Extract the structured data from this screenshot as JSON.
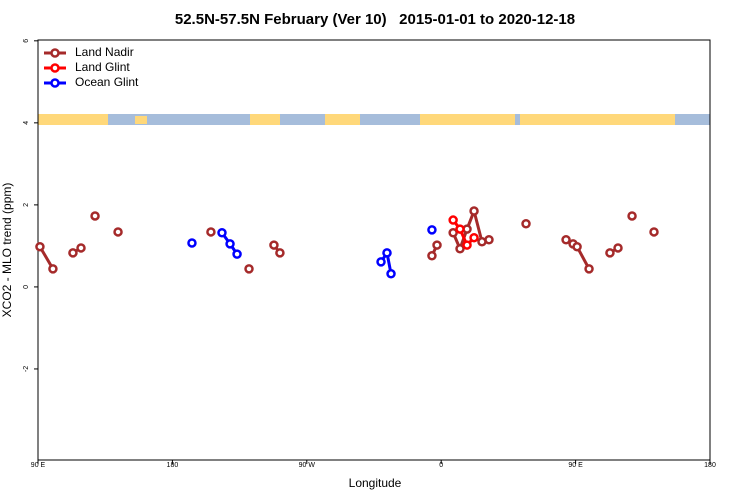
{
  "chart_data": {
    "type": "line",
    "title": "52.5N-57.5N February (Ver 10)   2015-01-01 to 2020-12-18",
    "x_label": "Longitude",
    "y_label": "XCO2 - MLO trend (ppm)",
    "xlim": [
      90,
      540
    ],
    "xticks": [
      {
        "value": 90,
        "label": "90 E"
      },
      {
        "value": 180,
        "label": "180"
      },
      {
        "value": 270,
        "label": "90 W"
      },
      {
        "value": 360,
        "label": "0"
      },
      {
        "value": 450,
        "label": "90 E"
      },
      {
        "value": 540,
        "label": "180"
      }
    ],
    "ylim": [
      -4.22,
      6.02
    ],
    "yticks": [
      -2,
      0,
      2,
      4,
      6
    ],
    "legend": "top-left",
    "series": [
      {
        "name": "Land Nadir",
        "color": "#a52a2a",
        "x": [
          91.3,
          100,
          null,
          113.4,
          118.8,
          null,
          128.2,
          null,
          143.6,
          null,
          205.8,
          null,
          231.3,
          null,
          248,
          252,
          null,
          353.8,
          357.2,
          null,
          368,
          372.6,
          377.3,
          382,
          387.3,
          392,
          null,
          416.8,
          null,
          443.6,
          448.3,
          451,
          459,
          null,
          473,
          478.4,
          null,
          487.8,
          null,
          502.5
        ],
        "values": [
          0.98,
          0.44,
          null,
          0.83,
          0.95,
          null,
          1.73,
          null,
          1.34,
          null,
          1.34,
          null,
          0.44,
          null,
          1.02,
          0.83,
          null,
          0.76,
          1.02,
          null,
          1.32,
          0.93,
          1.41,
          1.85,
          1.1,
          1.15,
          null,
          1.54,
          null,
          1.15,
          1.05,
          0.98,
          0.44,
          null,
          0.83,
          0.95,
          null,
          1.73,
          null,
          1.34
        ]
      },
      {
        "name": "Land Glint",
        "color": "#ff0000",
        "x": [
          368,
          372.6,
          377.3,
          382
        ],
        "values": [
          1.63,
          1.41,
          1.02,
          1.2
        ]
      },
      {
        "name": "Ocean Glint",
        "color": "#0000ff",
        "x": [
          193.1,
          null,
          213.2,
          218.6,
          223.3,
          null,
          319.7,
          323.7,
          326.4,
          null,
          353.8
        ],
        "values": [
          1.07,
          null,
          1.32,
          1.05,
          0.8,
          null,
          0.61,
          0.83,
          0.32,
          null,
          1.39
        ]
      }
    ]
  }
}
